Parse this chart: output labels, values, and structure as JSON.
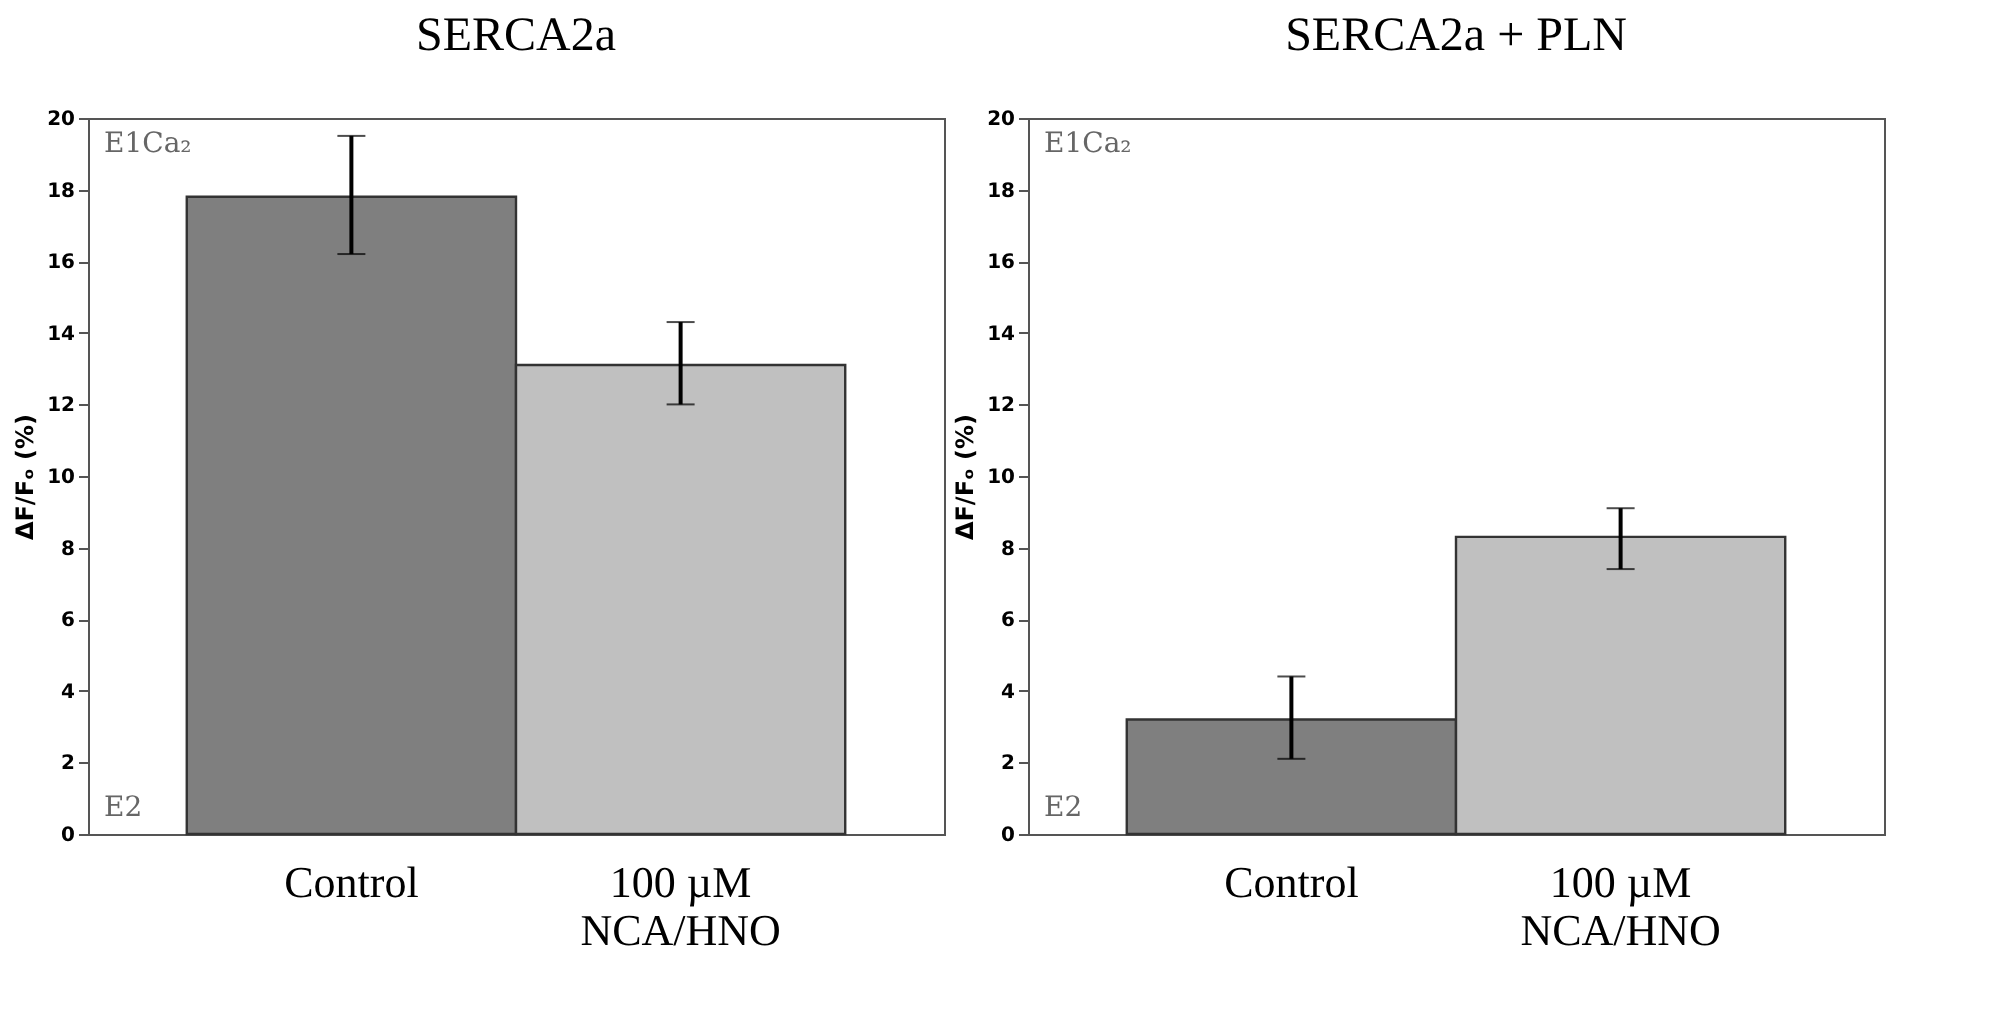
{
  "chart_data": [
    {
      "type": "bar",
      "title": "SERCA2a",
      "ylabel": "ΔF/Fₒ (%)",
      "categories": [
        "Control",
        "100 µM NCA/HNO"
      ],
      "values": [
        17.8,
        13.1
      ],
      "colors": [
        "#7f7f7f",
        "#c0c0c0"
      ],
      "errors": [
        [
          16.2,
          19.5
        ],
        [
          12.0,
          14.3
        ]
      ],
      "ylim": [
        0,
        20
      ],
      "yticks": [
        0,
        2,
        4,
        6,
        8,
        10,
        12,
        14,
        16,
        18,
        20
      ],
      "annotations": [
        "E1Ca₂",
        "E2"
      ]
    },
    {
      "type": "bar",
      "title": "SERCA2a + PLN",
      "ylabel": "ΔF/Fₒ (%)",
      "categories": [
        "Control",
        "100 µM NCA/HNO"
      ],
      "values": [
        3.2,
        8.3
      ],
      "colors": [
        "#7f7f7f",
        "#c0c0c0"
      ],
      "errors": [
        [
          2.1,
          4.4
        ],
        [
          7.4,
          9.1
        ]
      ],
      "ylim": [
        0,
        20
      ],
      "yticks": [
        0,
        2,
        4,
        6,
        8,
        10,
        12,
        14,
        16,
        18,
        20
      ],
      "annotations": [
        "E1Ca₂",
        "E2"
      ]
    }
  ]
}
